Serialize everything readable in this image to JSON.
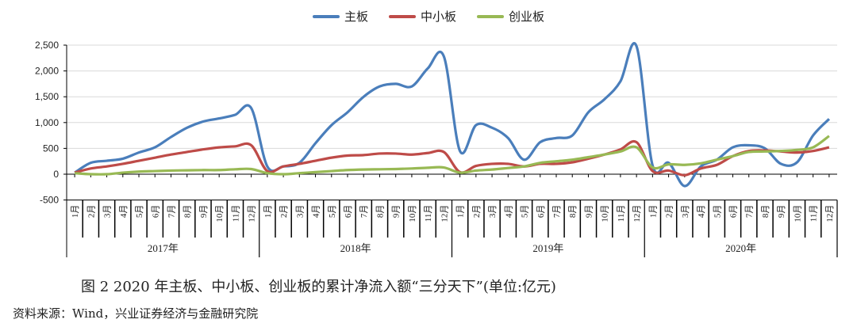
{
  "chart_data": {
    "type": "line",
    "title": "",
    "xlabel": "",
    "ylabel": "",
    "ylim": [
      -500,
      2500
    ],
    "yticks": [
      "2,500",
      "2,000",
      "1,500",
      "1,000",
      "500",
      "0",
      "-500"
    ],
    "grid": true,
    "legend_position": "top",
    "years": [
      "2017年",
      "2018年",
      "2019年",
      "2020年"
    ],
    "months": [
      "1月",
      "2月",
      "3月",
      "4月",
      "5月",
      "6月",
      "7月",
      "8月",
      "9月",
      "10月",
      "11月",
      "12月"
    ],
    "series": [
      {
        "name": "主板",
        "color": "#4a7ebb",
        "values": [
          30,
          220,
          260,
          300,
          420,
          520,
          720,
          900,
          1020,
          1080,
          1150,
          1280,
          150,
          150,
          220,
          600,
          950,
          1200,
          1500,
          1700,
          1750,
          1700,
          2050,
          2280,
          450,
          950,
          900,
          700,
          280,
          620,
          700,
          750,
          1200,
          1450,
          1800,
          2480,
          170,
          220,
          -230,
          150,
          280,
          520,
          560,
          500,
          200,
          230,
          750,
          1070
        ]
      },
      {
        "name": "中小板",
        "color": "#be4b48",
        "values": [
          30,
          110,
          150,
          200,
          260,
          320,
          380,
          430,
          480,
          520,
          540,
          560,
          60,
          150,
          200,
          260,
          320,
          360,
          370,
          400,
          400,
          380,
          410,
          430,
          40,
          160,
          200,
          200,
          150,
          200,
          200,
          230,
          300,
          380,
          480,
          620,
          60,
          70,
          -20,
          110,
          180,
          350,
          450,
          460,
          440,
          420,
          450,
          520
        ]
      },
      {
        "name": "创业板",
        "color": "#98b954",
        "values": [
          20,
          0,
          0,
          30,
          50,
          60,
          70,
          75,
          80,
          80,
          95,
          100,
          20,
          0,
          20,
          40,
          60,
          80,
          90,
          95,
          100,
          110,
          125,
          130,
          30,
          70,
          90,
          120,
          150,
          220,
          250,
          280,
          330,
          380,
          440,
          520,
          130,
          190,
          180,
          210,
          280,
          350,
          430,
          440,
          450,
          470,
          520,
          740
        ]
      }
    ]
  },
  "legend": [
    "主板",
    "中小板",
    "创业板"
  ],
  "caption": "图 2   2020 年主板、中小板、创业板的累计净流入额“三分天下”(单位:亿元)",
  "source": "资料来源：Wind，兴业证券经济与金融研究院"
}
